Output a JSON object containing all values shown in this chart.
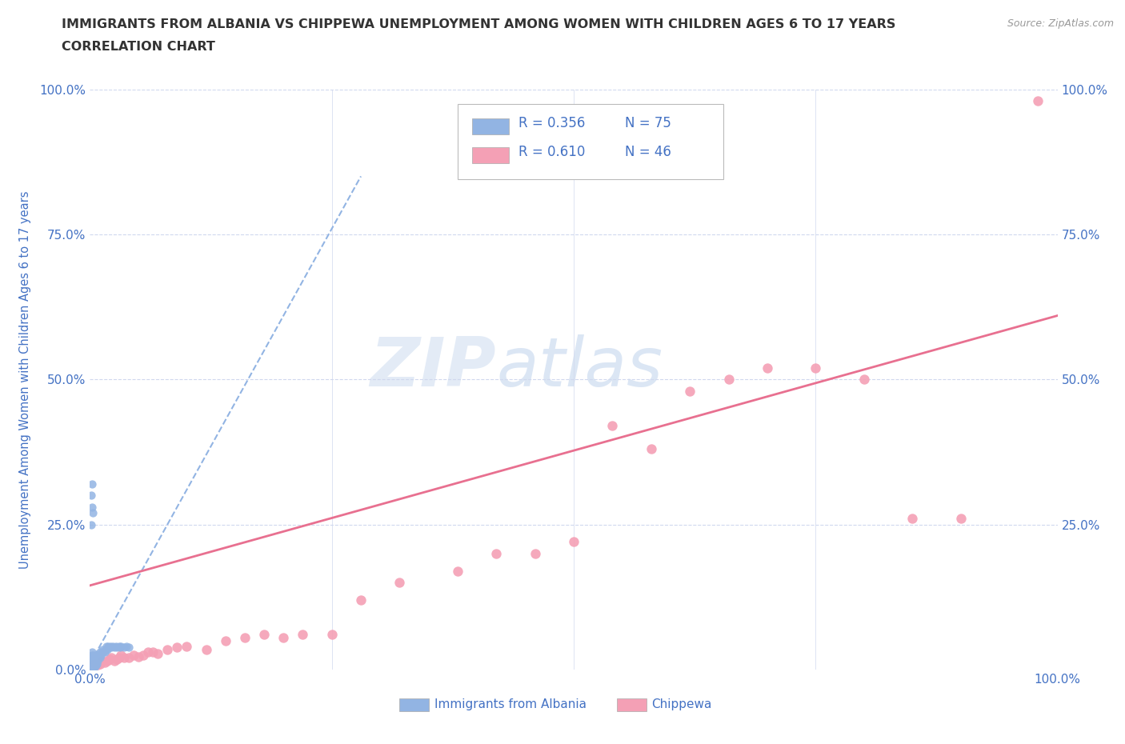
{
  "title_line1": "IMMIGRANTS FROM ALBANIA VS CHIPPEWA UNEMPLOYMENT AMONG WOMEN WITH CHILDREN AGES 6 TO 17 YEARS",
  "title_line2": "CORRELATION CHART",
  "source_text": "Source: ZipAtlas.com",
  "ylabel": "Unemployment Among Women with Children Ages 6 to 17 years",
  "xlim": [
    0,
    1.0
  ],
  "ylim": [
    0,
    1.0
  ],
  "watermark_zip": "ZIP",
  "watermark_atlas": "atlas",
  "legend_r1": "R = 0.356",
  "legend_n1": "N = 75",
  "legend_r2": "R = 0.610",
  "legend_n2": "N = 46",
  "albania_color": "#92b4e3",
  "chippewa_color": "#f4a0b5",
  "albania_trend_color": "#92b4e3",
  "chippewa_trend_color": "#e87090",
  "title_color": "#333333",
  "tick_color": "#4472c4",
  "grid_color": "#d0d8ee",
  "background_color": "#ffffff",
  "albania_x": [
    0.001,
    0.001,
    0.001,
    0.001,
    0.001,
    0.001,
    0.001,
    0.001,
    0.001,
    0.001,
    0.002,
    0.002,
    0.002,
    0.002,
    0.002,
    0.002,
    0.002,
    0.002,
    0.002,
    0.002,
    0.002,
    0.002,
    0.002,
    0.003,
    0.003,
    0.003,
    0.003,
    0.003,
    0.003,
    0.003,
    0.004,
    0.004,
    0.004,
    0.004,
    0.004,
    0.005,
    0.005,
    0.005,
    0.005,
    0.006,
    0.006,
    0.007,
    0.007,
    0.008,
    0.008,
    0.009,
    0.01,
    0.01,
    0.011,
    0.012,
    0.013,
    0.014,
    0.015,
    0.016,
    0.017,
    0.018,
    0.019,
    0.02,
    0.021,
    0.022,
    0.024,
    0.025,
    0.027,
    0.028,
    0.03,
    0.031,
    0.032,
    0.035,
    0.038,
    0.04,
    0.001,
    0.001,
    0.002,
    0.002,
    0.003
  ],
  "albania_y": [
    0.001,
    0.002,
    0.003,
    0.004,
    0.005,
    0.006,
    0.008,
    0.01,
    0.012,
    0.015,
    0.001,
    0.002,
    0.004,
    0.006,
    0.008,
    0.01,
    0.012,
    0.015,
    0.018,
    0.02,
    0.022,
    0.025,
    0.03,
    0.002,
    0.005,
    0.008,
    0.012,
    0.015,
    0.02,
    0.025,
    0.003,
    0.006,
    0.01,
    0.015,
    0.02,
    0.005,
    0.01,
    0.015,
    0.025,
    0.008,
    0.015,
    0.01,
    0.02,
    0.015,
    0.025,
    0.02,
    0.02,
    0.03,
    0.025,
    0.03,
    0.035,
    0.03,
    0.03,
    0.035,
    0.04,
    0.035,
    0.04,
    0.038,
    0.04,
    0.038,
    0.04,
    0.038,
    0.04,
    0.038,
    0.04,
    0.038,
    0.04,
    0.038,
    0.04,
    0.038,
    0.25,
    0.3,
    0.28,
    0.32,
    0.27
  ],
  "albania_trend_x": [
    0.0,
    0.28
  ],
  "albania_trend_y": [
    0.01,
    0.85
  ],
  "chippewa_x": [
    0.005,
    0.008,
    0.01,
    0.012,
    0.015,
    0.018,
    0.02,
    0.022,
    0.025,
    0.028,
    0.03,
    0.032,
    0.035,
    0.04,
    0.045,
    0.05,
    0.055,
    0.06,
    0.065,
    0.07,
    0.08,
    0.09,
    0.1,
    0.12,
    0.14,
    0.16,
    0.18,
    0.2,
    0.22,
    0.25,
    0.28,
    0.32,
    0.38,
    0.42,
    0.46,
    0.5,
    0.54,
    0.58,
    0.62,
    0.66,
    0.7,
    0.75,
    0.8,
    0.85,
    0.9,
    0.98
  ],
  "chippewa_y": [
    0.01,
    0.008,
    0.01,
    0.015,
    0.012,
    0.015,
    0.018,
    0.02,
    0.015,
    0.018,
    0.02,
    0.025,
    0.02,
    0.02,
    0.025,
    0.022,
    0.025,
    0.03,
    0.03,
    0.028,
    0.035,
    0.038,
    0.04,
    0.035,
    0.05,
    0.055,
    0.06,
    0.055,
    0.06,
    0.06,
    0.12,
    0.15,
    0.17,
    0.2,
    0.2,
    0.22,
    0.42,
    0.38,
    0.48,
    0.5,
    0.52,
    0.52,
    0.5,
    0.26,
    0.26,
    0.98
  ],
  "chippewa_trend_x": [
    0.0,
    1.0
  ],
  "chippewa_trend_y": [
    0.145,
    0.61
  ]
}
